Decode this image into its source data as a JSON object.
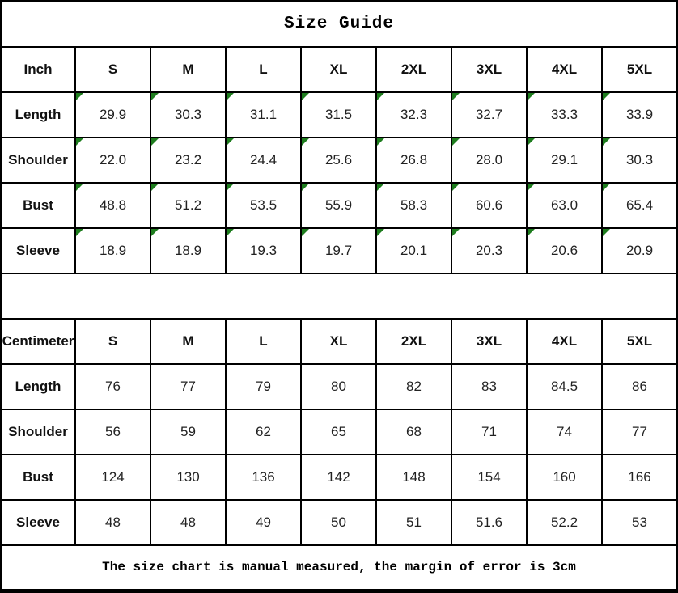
{
  "title": "Size Guide",
  "footer_note": "The size chart is manual measured, the margin of error is 3cm",
  "colors": {
    "marker_green": "#1e7d1e",
    "grid_black": "#000000",
    "background_white": "#ffffff"
  },
  "icons": {
    "cell_corner_marker": "green-corner-triangle"
  },
  "tables": [
    {
      "id": "inch",
      "unit_label": "Inch",
      "sizes": [
        "S",
        "M",
        "L",
        "XL",
        "2XL",
        "3XL",
        "4XL",
        "5XL"
      ],
      "value_cell_marker": true,
      "rows": [
        {
          "label": "Length",
          "values": [
            "29.9",
            "30.3",
            "31.1",
            "31.5",
            "32.3",
            "32.7",
            "33.3",
            "33.9"
          ]
        },
        {
          "label": "Shoulder",
          "values": [
            "22.0",
            "23.2",
            "24.4",
            "25.6",
            "26.8",
            "28.0",
            "29.1",
            "30.3"
          ]
        },
        {
          "label": "Bust",
          "values": [
            "48.8",
            "51.2",
            "53.5",
            "55.9",
            "58.3",
            "60.6",
            "63.0",
            "65.4"
          ]
        },
        {
          "label": "Sleeve",
          "values": [
            "18.9",
            "18.9",
            "19.3",
            "19.7",
            "20.1",
            "20.3",
            "20.6",
            "20.9"
          ]
        }
      ]
    },
    {
      "id": "centimeter",
      "unit_label": "Centimeter",
      "sizes": [
        "S",
        "M",
        "L",
        "XL",
        "2XL",
        "3XL",
        "4XL",
        "5XL"
      ],
      "value_cell_marker": false,
      "rows": [
        {
          "label": "Length",
          "values": [
            "76",
            "77",
            "79",
            "80",
            "82",
            "83",
            "84.5",
            "86"
          ]
        },
        {
          "label": "Shoulder",
          "values": [
            "56",
            "59",
            "62",
            "65",
            "68",
            "71",
            "74",
            "77"
          ]
        },
        {
          "label": "Bust",
          "values": [
            "124",
            "130",
            "136",
            "142",
            "148",
            "154",
            "160",
            "166"
          ]
        },
        {
          "label": "Sleeve",
          "values": [
            "48",
            "48",
            "49",
            "50",
            "51",
            "51.6",
            "52.2",
            "53"
          ]
        }
      ]
    }
  ],
  "chart_data": [
    {
      "type": "table",
      "title": "Size Guide",
      "unit": "Inch",
      "columns": [
        "Inch",
        "S",
        "M",
        "L",
        "XL",
        "2XL",
        "3XL",
        "4XL",
        "5XL"
      ],
      "rows": [
        [
          "Length",
          29.9,
          30.3,
          31.1,
          31.5,
          32.3,
          32.7,
          33.3,
          33.9
        ],
        [
          "Shoulder",
          22.0,
          23.2,
          24.4,
          25.6,
          26.8,
          28.0,
          29.1,
          30.3
        ],
        [
          "Bust",
          48.8,
          51.2,
          53.5,
          55.9,
          58.3,
          60.6,
          63.0,
          65.4
        ],
        [
          "Sleeve",
          18.9,
          18.9,
          19.3,
          19.7,
          20.1,
          20.3,
          20.6,
          20.9
        ]
      ]
    },
    {
      "type": "table",
      "title": "Size Guide",
      "unit": "Centimeter",
      "columns": [
        "Centimeter",
        "S",
        "M",
        "L",
        "XL",
        "2XL",
        "3XL",
        "4XL",
        "5XL"
      ],
      "rows": [
        [
          "Length",
          76,
          77,
          79,
          80,
          82,
          83,
          84.5,
          86
        ],
        [
          "Shoulder",
          56,
          59,
          62,
          65,
          68,
          71,
          74,
          77
        ],
        [
          "Bust",
          124,
          130,
          136,
          142,
          148,
          154,
          160,
          166
        ],
        [
          "Sleeve",
          48,
          48,
          49,
          50,
          51,
          51.6,
          52.2,
          53
        ]
      ],
      "annotation": "The size chart is manual measured, the margin of error is 3cm"
    }
  ]
}
